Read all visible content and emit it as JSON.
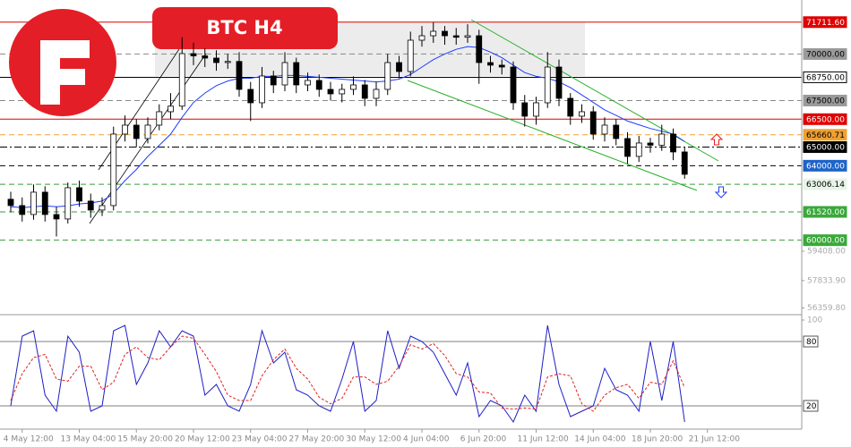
{
  "badge": "BTC H4",
  "chart_data": {
    "type": "candlestick",
    "categories": [
      null,
      "4 May 12:00",
      null,
      null,
      null,
      null,
      "13 May 04:00",
      null,
      null,
      null,
      null,
      "15 May 20:00",
      null,
      null,
      null,
      null,
      "20 May 12:00",
      null,
      null,
      null,
      null,
      "23 May 04:00",
      null,
      null,
      null,
      null,
      "27 May 20:00",
      null,
      null,
      null,
      null,
      "30 May 12:00",
      null,
      null,
      null,
      null,
      "4 Jun 04:00",
      null,
      null,
      null,
      null,
      "6 Jun 20:00",
      null,
      null,
      null,
      null,
      "11 Jun 12:00",
      null,
      null,
      null,
      null,
      "14 Jun 04:00",
      null,
      null,
      null,
      null,
      "18 Jun 20:00",
      null,
      null,
      null,
      null,
      "21 Jun 12:00"
    ],
    "open": [
      62200,
      61860,
      61380,
      62580,
      61380,
      61140,
      62820,
      62100,
      61620,
      61860,
      65700,
      66180,
      65460,
      66180,
      66900,
      67200,
      70020,
      69900,
      69780,
      69540,
      69600,
      68100,
      67380,
      68820,
      68340,
      69540,
      68340,
      68580,
      68100,
      67860,
      68100,
      68340,
      67620,
      68100,
      69540,
      69060,
      70740,
      70980,
      71220,
      70980,
      70900,
      70980,
      69540,
      69400,
      69300,
      67380,
      66660,
      67380,
      69300,
      67620,
      66660,
      66900,
      65700,
      66180,
      65460,
      64500,
      65220,
      65100,
      65700,
      64740,
      null,
      null
    ],
    "high": [
      62600,
      62300,
      63000,
      62900,
      61800,
      63100,
      63200,
      62500,
      62300,
      66100,
      66700,
      66500,
      66600,
      67300,
      67900,
      70900,
      70600,
      70300,
      70200,
      70000,
      70100,
      68500,
      69300,
      69100,
      70100,
      69800,
      69000,
      68900,
      68500,
      68400,
      68800,
      68600,
      68500,
      70000,
      69900,
      71200,
      71500,
      71700,
      71500,
      71400,
      71600,
      71300,
      69900,
      69700,
      69600,
      67800,
      67700,
      70100,
      69700,
      67900,
      67300,
      67200,
      66600,
      66500,
      65800,
      65600,
      65500,
      66200,
      66000,
      65000,
      null,
      null
    ],
    "low": [
      61500,
      61000,
      61100,
      61000,
      60200,
      60900,
      61800,
      61200,
      61300,
      61600,
      65300,
      65000,
      65200,
      65900,
      66500,
      67000,
      69400,
      69300,
      69100,
      69200,
      67700,
      66400,
      67100,
      67900,
      68000,
      67900,
      68000,
      67700,
      67500,
      67400,
      67800,
      67200,
      67200,
      67800,
      68700,
      68800,
      70400,
      70600,
      70500,
      70500,
      70600,
      68400,
      69000,
      68900,
      67000,
      66100,
      66200,
      67100,
      67200,
      66200,
      66300,
      65400,
      65300,
      65100,
      64100,
      64200,
      64700,
      64800,
      64300,
      63300,
      null,
      null
    ],
    "close": [
      61860,
      61380,
      62580,
      61380,
      61140,
      62820,
      62100,
      61620,
      61860,
      65700,
      66180,
      65460,
      66180,
      66900,
      67200,
      70020,
      69900,
      69780,
      69540,
      69600,
      68100,
      67380,
      68820,
      68340,
      69540,
      68340,
      68580,
      68100,
      67860,
      68100,
      68340,
      67620,
      68100,
      69540,
      69060,
      70740,
      70980,
      71220,
      70980,
      70900,
      70980,
      69540,
      69400,
      69300,
      67380,
      66660,
      67380,
      69300,
      67620,
      66660,
      66900,
      65700,
      66180,
      65460,
      64500,
      65220,
      65100,
      65700,
      64740,
      63540,
      null,
      null
    ],
    "up_color": "#ffffff",
    "down_color": "#000000",
    "ma": {
      "color": "#1e3cff",
      "values": [
        61800,
        61750,
        61800,
        61850,
        61800,
        61850,
        61950,
        62000,
        62100,
        62500,
        63200,
        63800,
        64500,
        65100,
        65700,
        66600,
        67400,
        67900,
        68300,
        68550,
        68700,
        68700,
        68800,
        68800,
        68850,
        68850,
        68800,
        68750,
        68700,
        68650,
        68600,
        68550,
        68500,
        68550,
        68650,
        68900,
        69300,
        69700,
        70000,
        70250,
        70400,
        70350,
        70100,
        69800,
        69400,
        69000,
        68800,
        68700,
        68500,
        68200,
        67800,
        67400,
        67000,
        66700,
        66400,
        66200,
        66000,
        65850,
        65700,
        65300,
        null,
        null
      ]
    },
    "ylim": [
      56000,
      72900
    ],
    "yticks": [
      {
        "value": 59408,
        "label": "59408.00"
      },
      {
        "value": 57833.9,
        "label": "57833.90"
      },
      {
        "value": 56359.8,
        "label": "56359.80"
      }
    ],
    "levels": [
      {
        "value": 71711.6,
        "label": "71711.60",
        "color": "#e00000",
        "style": "solid",
        "label_color": "#e00000"
      },
      {
        "value": 70000,
        "label": "70000.00",
        "color": "#888888",
        "style": "dashed",
        "label_color": "#9a9a9a"
      },
      {
        "value": 68750,
        "label": "68750.00",
        "color": "#000000",
        "style": "solid",
        "label_color": "#ffffff"
      },
      {
        "value": 67500,
        "label": "67500.00",
        "color": "#888888",
        "style": "dashed",
        "label_color": "#9a9a9a"
      },
      {
        "value": 66500,
        "label": "66500.00",
        "color": "#e00000",
        "style": "solid",
        "label_color": "#e00000"
      },
      {
        "value": 65660.71,
        "label": "65660.71",
        "color": "#f0a030",
        "style": "dashed",
        "label_color": "#f0a030"
      },
      {
        "value": 65000,
        "label": "65000.00",
        "color": "#000000",
        "style": "dashdot",
        "label_color": "#000000"
      },
      {
        "value": 64000,
        "label": "64000.00",
        "color": "#000000",
        "style": "dashed",
        "label_color": "#1e64c8"
      },
      {
        "value": 63006.14,
        "label": "63006.14",
        "color": "#3a9a3a",
        "style": "dashed",
        "label_color": "#e8f4e8"
      },
      {
        "value": 61520,
        "label": "61520.00",
        "color": "#3a9a3a",
        "style": "dashed",
        "label_color": "#3aa83a"
      },
      {
        "value": 60000,
        "label": "60000.00",
        "color": "#3a9a3a",
        "style": "dashed",
        "label_color": "#3aa83a"
      }
    ],
    "oscillator": {
      "ylim": [
        0,
        100
      ],
      "yticks": [
        100
      ],
      "levels": [
        80,
        20
      ],
      "series": [
        {
          "color": "#1e1ec8",
          "values": [
            20,
            85,
            90,
            30,
            15,
            85,
            70,
            15,
            20,
            90,
            95,
            40,
            60,
            90,
            75,
            90,
            85,
            30,
            40,
            20,
            15,
            40,
            90,
            60,
            70,
            35,
            30,
            20,
            15,
            45,
            80,
            15,
            25,
            90,
            55,
            85,
            80,
            70,
            50,
            30,
            60,
            10,
            25,
            20,
            5,
            30,
            15,
            95,
            40,
            10,
            15,
            20,
            55,
            35,
            30,
            15,
            80,
            25,
            80,
            5,
            null,
            null
          ]
        },
        {
          "color": "#e02020",
          "dashed": true,
          "values": [
            25,
            50,
            65,
            68,
            45,
            43,
            57,
            57,
            35,
            42,
            68,
            75,
            65,
            63,
            75,
            85,
            83,
            68,
            52,
            30,
            25,
            25,
            48,
            63,
            73,
            55,
            45,
            28,
            22,
            27,
            47,
            47,
            40,
            43,
            57,
            77,
            73,
            78,
            67,
            50,
            47,
            33,
            32,
            18,
            17,
            18,
            17,
            47,
            50,
            48,
            22,
            15,
            30,
            37,
            40,
            27,
            42,
            40,
            62,
            37,
            null,
            null
          ]
        }
      ]
    }
  }
}
